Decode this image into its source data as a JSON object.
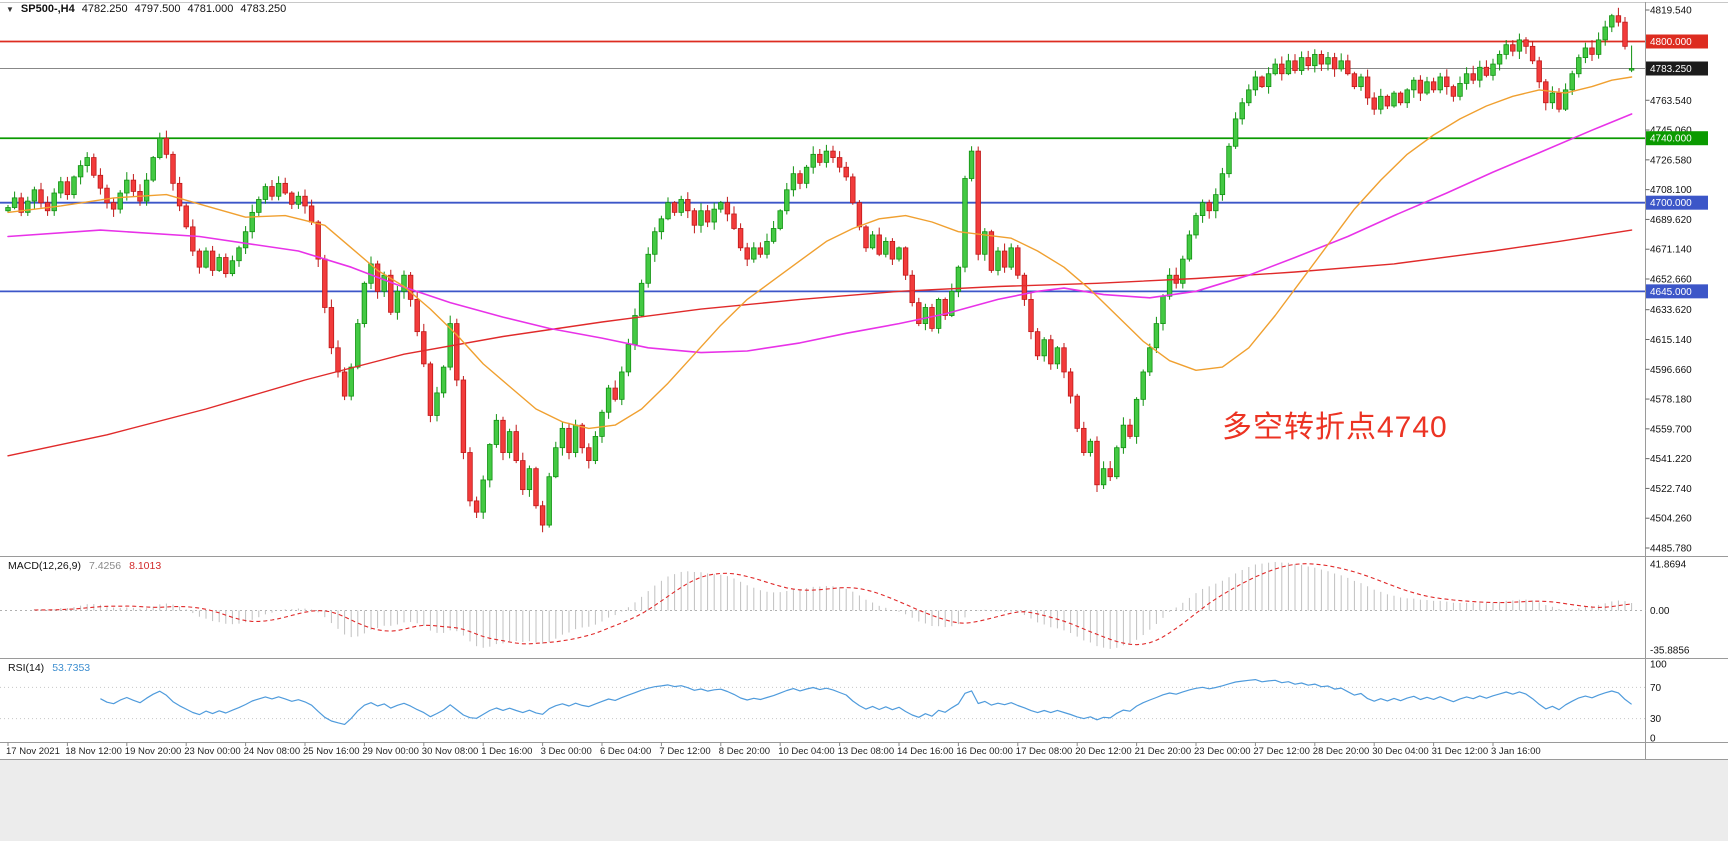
{
  "window": {
    "symbol_info": {
      "dropdown_icon": "▼",
      "symbol_period": "SP500-,H4",
      "open": "4782.250",
      "high": "4797.500",
      "low": "4781.000",
      "close": "4783.250"
    }
  },
  "chart_data": {
    "type": "candlestick",
    "title": "SP500- H4 chart",
    "symbol": "SP500-",
    "timeframe": "H4",
    "ylim": [
      4485.78,
      4819.54
    ],
    "current_bar": {
      "open": 4782.25,
      "high": 4797.5,
      "low": 4781.0,
      "close": 4783.25
    },
    "first_open": 4695,
    "closes": [
      4697,
      4703,
      4694,
      4701,
      4708,
      4700,
      4695,
      4706,
      4713,
      4705,
      4716,
      4723,
      4728,
      4717,
      4709,
      4700,
      4696,
      4706,
      4714,
      4707,
      4701,
      4714,
      4728,
      4740,
      4730,
      4712,
      4698,
      4685,
      4670,
      4660,
      4670,
      4658,
      4666,
      4656,
      4664,
      4672,
      4682,
      4694,
      4702,
      4710,
      4704,
      4712,
      4706,
      4699,
      4704,
      4698,
      4688,
      4665,
      4635,
      4610,
      4595,
      4580,
      4598,
      4625,
      4650,
      4662,
      4645,
      4655,
      4632,
      4645,
      4655,
      4640,
      4620,
      4600,
      4568,
      4582,
      4598,
      4625,
      4590,
      4545,
      4515,
      4508,
      4528,
      4550,
      4565,
      4545,
      4558,
      4540,
      4522,
      4535,
      4512,
      4500,
      4530,
      4548,
      4560,
      4545,
      4562,
      4548,
      4540,
      4555,
      4570,
      4585,
      4578,
      4595,
      4612,
      4630,
      4650,
      4668,
      4682,
      4690,
      4700,
      4694,
      4702,
      4695,
      4686,
      4695,
      4688,
      4696,
      4700,
      4693,
      4684,
      4672,
      4665,
      4672,
      4668,
      4676,
      4684,
      4695,
      4708,
      4718,
      4712,
      4722,
      4730,
      4725,
      4732,
      4728,
      4722,
      4716,
      4700,
      4685,
      4672,
      4680,
      4668,
      4676,
      4665,
      4672,
      4655,
      4638,
      4625,
      4635,
      4622,
      4640,
      4630,
      4645,
      4660,
      4715,
      4732,
      4668,
      4682,
      4658,
      4670,
      4660,
      4672,
      4655,
      4640,
      4620,
      4605,
      4615,
      4600,
      4610,
      4595,
      4580,
      4560,
      4545,
      4552,
      4525,
      4535,
      4530,
      4548,
      4562,
      4555,
      4578,
      4595,
      4610,
      4625,
      4642,
      4655,
      4650,
      4665,
      4680,
      4692,
      4700,
      4695,
      4705,
      4718,
      4735,
      4752,
      4762,
      4770,
      4778,
      4772,
      4780,
      4786,
      4780,
      4788,
      4782,
      4790,
      4785,
      4792,
      4786,
      4790,
      4783,
      4788,
      4780,
      4772,
      4778,
      4765,
      4758,
      4766,
      4760,
      4768,
      4762,
      4770,
      4776,
      4768,
      4775,
      4770,
      4778,
      4772,
      4766,
      4774,
      4780,
      4776,
      4784,
      4779,
      4786,
      4792,
      4798,
      4794,
      4801,
      4797,
      4788,
      4775,
      4762,
      4768,
      4758,
      4770,
      4780,
      4790,
      4796,
      4792,
      4801,
      4809,
      4816,
      4812,
      4797,
      4783.25
    ],
    "bars_per_x_label": 9,
    "x_labels": [
      "17 Nov 2021",
      "18 Nov 12:00",
      "19 Nov 20:00",
      "23 Nov 00:00",
      "24 Nov 08:00",
      "25 Nov 16:00",
      "29 Nov 00:00",
      "30 Nov 08:00",
      "1 Dec 16:00",
      "3 Dec 00:00",
      "6 Dec 04:00",
      "7 Dec 12:00",
      "8 Dec 20:00",
      "10 Dec 04:00",
      "13 Dec 08:00",
      "14 Dec 16:00",
      "16 Dec 00:00",
      "17 Dec 08:00",
      "20 Dec 12:00",
      "21 Dec 20:00",
      "23 Dec 00:00",
      "27 Dec 12:00",
      "28 Dec 20:00",
      "30 Dec 04:00",
      "31 Dec 12:00",
      "3 Jan 16:00"
    ],
    "price_axis_labels": [
      "4819.540",
      "4763.540",
      "4745.060",
      "4726.580",
      "4708.100",
      "4689.620",
      "4671.140",
      "4652.660",
      "4633.620",
      "4615.140",
      "4596.660",
      "4578.180",
      "4559.700",
      "4541.220",
      "4522.740",
      "4504.260",
      "4485.780"
    ],
    "horizontal_lines": [
      {
        "price": 4800.0,
        "label": "4800.000",
        "color": "#dd2c20"
      },
      {
        "price": 4740.0,
        "label": "4740.000",
        "color": "#0a9a00"
      },
      {
        "price": 4700.0,
        "label": "4700.000",
        "color": "#3c56c8"
      },
      {
        "price": 4645.0,
        "label": "4645.000",
        "color": "#3c56c8"
      }
    ],
    "current_price_line": {
      "price": 4783.25,
      "label": "4783.250",
      "line_color": "#888888",
      "badge_color": "#1c1c1c"
    },
    "moving_averages": [
      {
        "name": "ma-slow-red",
        "color": "#e02a2a",
        "width": 1.4,
        "points": [
          [
            0,
            4543
          ],
          [
            15,
            4556
          ],
          [
            30,
            4572
          ],
          [
            45,
            4590
          ],
          [
            60,
            4606
          ],
          [
            75,
            4617
          ],
          [
            90,
            4626
          ],
          [
            105,
            4634
          ],
          [
            120,
            4640
          ],
          [
            135,
            4645
          ],
          [
            150,
            4648
          ],
          [
            165,
            4650
          ],
          [
            180,
            4653
          ],
          [
            195,
            4657
          ],
          [
            210,
            4662
          ],
          [
            225,
            4670
          ],
          [
            235,
            4676
          ],
          [
            246,
            4683
          ]
        ]
      },
      {
        "name": "ma-mid-magenta",
        "color": "#e832e8",
        "width": 1.6,
        "points": [
          [
            0,
            4679
          ],
          [
            14,
            4683
          ],
          [
            29,
            4679
          ],
          [
            44,
            4670
          ],
          [
            52,
            4660
          ],
          [
            59,
            4649
          ],
          [
            67,
            4638
          ],
          [
            75,
            4629
          ],
          [
            82,
            4622
          ],
          [
            90,
            4616
          ],
          [
            97,
            4610
          ],
          [
            105,
            4607
          ],
          [
            112,
            4608
          ],
          [
            120,
            4613
          ],
          [
            127,
            4619
          ],
          [
            135,
            4625
          ],
          [
            142,
            4631
          ],
          [
            150,
            4640
          ],
          [
            156,
            4645
          ],
          [
            160,
            4647
          ],
          [
            166,
            4643
          ],
          [
            173,
            4641
          ],
          [
            180,
            4645
          ],
          [
            188,
            4655
          ],
          [
            195,
            4666
          ],
          [
            203,
            4679
          ],
          [
            210,
            4692
          ],
          [
            218,
            4706
          ],
          [
            225,
            4719
          ],
          [
            232,
            4731
          ],
          [
            240,
            4745
          ],
          [
            246,
            4755
          ]
        ]
      },
      {
        "name": "ma-fast-orange",
        "color": "#f0a030",
        "width": 1.4,
        "points": [
          [
            0,
            4694
          ],
          [
            8,
            4698
          ],
          [
            16,
            4703
          ],
          [
            24,
            4705
          ],
          [
            30,
            4698
          ],
          [
            36,
            4691
          ],
          [
            42,
            4692
          ],
          [
            48,
            4686
          ],
          [
            52,
            4672
          ],
          [
            56,
            4658
          ],
          [
            60,
            4648
          ],
          [
            64,
            4634
          ],
          [
            68,
            4618
          ],
          [
            72,
            4600
          ],
          [
            76,
            4586
          ],
          [
            80,
            4572
          ],
          [
            84,
            4564
          ],
          [
            88,
            4560
          ],
          [
            92,
            4562
          ],
          [
            96,
            4572
          ],
          [
            100,
            4588
          ],
          [
            104,
            4606
          ],
          [
            108,
            4624
          ],
          [
            112,
            4640
          ],
          [
            116,
            4652
          ],
          [
            120,
            4664
          ],
          [
            124,
            4676
          ],
          [
            128,
            4684
          ],
          [
            132,
            4690
          ],
          [
            136,
            4692
          ],
          [
            140,
            4688
          ],
          [
            144,
            4682
          ],
          [
            148,
            4680
          ],
          [
            152,
            4678
          ],
          [
            156,
            4670
          ],
          [
            160,
            4660
          ],
          [
            164,
            4646
          ],
          [
            168,
            4630
          ],
          [
            172,
            4614
          ],
          [
            176,
            4602
          ],
          [
            180,
            4596
          ],
          [
            184,
            4598
          ],
          [
            188,
            4610
          ],
          [
            192,
            4630
          ],
          [
            196,
            4652
          ],
          [
            200,
            4674
          ],
          [
            204,
            4696
          ],
          [
            208,
            4714
          ],
          [
            212,
            4730
          ],
          [
            216,
            4742
          ],
          [
            220,
            4752
          ],
          [
            224,
            4760
          ],
          [
            228,
            4766
          ],
          [
            232,
            4770
          ],
          [
            236,
            4768
          ],
          [
            240,
            4772
          ],
          [
            243,
            4776
          ],
          [
            246,
            4778
          ]
        ]
      }
    ],
    "candle_colors": {
      "up_fill": "#43c943",
      "up_stroke": "#119111",
      "down_fill": "#f23b3b",
      "down_stroke": "#c01818"
    },
    "indicators": {
      "macd": {
        "label": "MACD(12,26,9)",
        "main_value": "7.4256",
        "signal_value": "8.1013",
        "axis_labels": [
          "41.8694",
          "0.00",
          "-35.8856"
        ],
        "range": [
          -35.8856,
          41.8694
        ],
        "histogram_color": "#c0c0c0",
        "signal_color": "#e02a2a"
      },
      "rsi": {
        "label": "RSI(14)",
        "value": "53.7353",
        "axis_labels": [
          "100",
          "70",
          "30",
          "0"
        ],
        "levels": [
          70,
          30
        ],
        "range": [
          0,
          100
        ],
        "line_color": "#4f9bdc"
      }
    },
    "annotation": {
      "text": "多空转折点4740",
      "color": "#ec3323"
    }
  }
}
